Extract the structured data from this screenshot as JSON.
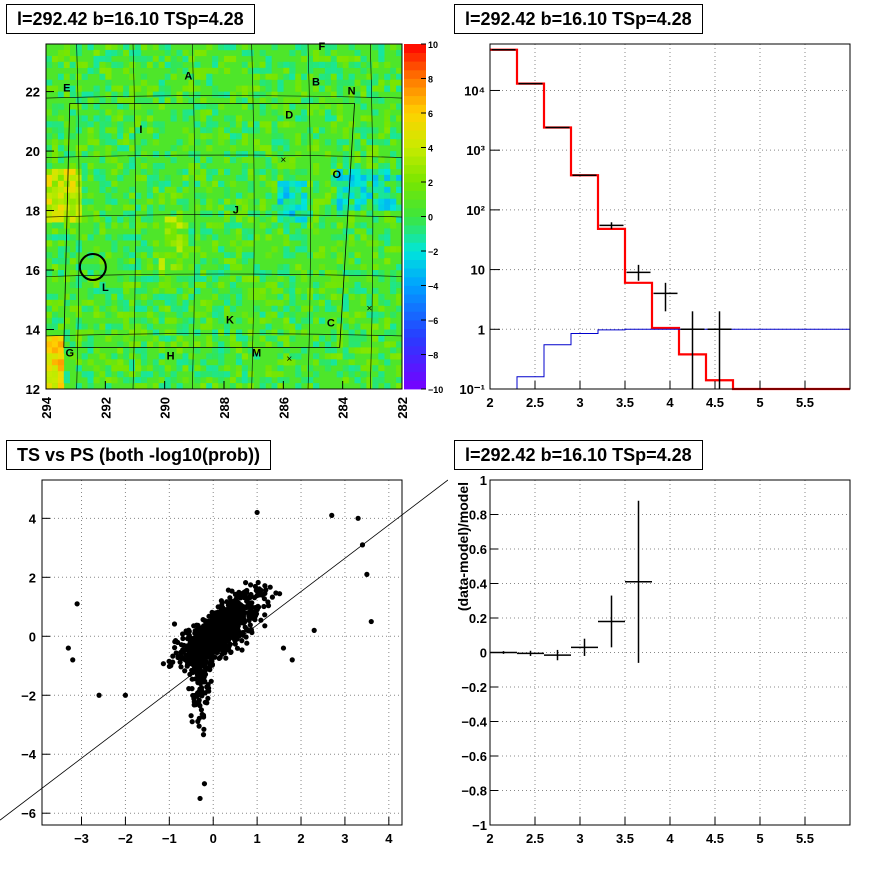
{
  "titles": {
    "map": "l=292.42 b=16.10 TSp=4.28",
    "spectrum": "l=292.42 b=16.10 TSp=4.28",
    "scatter": "TS vs PS (both -log10(prob))",
    "residual": "l=292.42 b=16.10 TSp=4.28"
  },
  "chart_data": [
    {
      "type": "heatmap",
      "title": "l=292.42 b=16.10 TSp=4.28",
      "xlim": [
        294,
        282
      ],
      "ylim": [
        12,
        23.6
      ],
      "x_ticks": [
        "294",
        "292",
        "290",
        "288",
        "286",
        "284",
        "282"
      ],
      "y_ticks": [
        "12",
        "14",
        "16",
        "18",
        "20",
        "22"
      ],
      "colorbar": {
        "range": [
          -10,
          10
        ],
        "ticks": [
          "10",
          "8",
          "6",
          "4",
          "2",
          "0",
          "−2",
          "−4",
          "−6",
          "−8",
          "−10"
        ]
      },
      "region_labels": [
        {
          "text": "A",
          "l": 289.2,
          "b": 22.4
        },
        {
          "text": "B",
          "l": 284.9,
          "b": 22.2
        },
        {
          "text": "E",
          "l": 293.3,
          "b": 22.0
        },
        {
          "text": "F",
          "l": 284.7,
          "b": 23.4
        },
        {
          "text": "N",
          "l": 283.7,
          "b": 21.9
        },
        {
          "text": "D",
          "l": 285.8,
          "b": 21.1
        },
        {
          "text": "I",
          "l": 290.8,
          "b": 20.6
        },
        {
          "text": "O",
          "l": 284.2,
          "b": 19.1
        },
        {
          "text": "J",
          "l": 287.6,
          "b": 17.9
        },
        {
          "text": "L",
          "l": 292.0,
          "b": 15.3
        },
        {
          "text": "K",
          "l": 287.8,
          "b": 14.2
        },
        {
          "text": "C",
          "l": 284.4,
          "b": 14.1
        },
        {
          "text": "G",
          "l": 293.2,
          "b": 13.1
        },
        {
          "text": "M",
          "l": 286.9,
          "b": 13.1
        },
        {
          "text": "H",
          "l": 289.8,
          "b": 13.0
        }
      ],
      "source_circle": {
        "l": 292.42,
        "b": 16.1
      }
    },
    {
      "type": "line",
      "title": "l=292.42 b=16.10 TSp=4.28",
      "y_scale": "log",
      "xlim": [
        2,
        6
      ],
      "ylim": [
        0.1,
        60000
      ],
      "x_ticks": [
        "2",
        "2.5",
        "3",
        "3.5",
        "4",
        "4.5",
        "5",
        "5.5"
      ],
      "y_ticks": [
        "10⁻¹",
        "1",
        "10",
        "10²",
        "10³",
        "10⁴"
      ],
      "bin_edges": [
        2,
        2.3,
        2.6,
        2.9,
        3.2,
        3.5,
        3.8,
        4.1,
        4.4,
        4.7,
        5.0,
        5.3,
        5.6,
        5.9,
        6.0
      ],
      "series": [
        {
          "color": "#ff0000",
          "values": [
            48000,
            13000,
            2400,
            380,
            48,
            6,
            1.05,
            0.38,
            0.14,
            0.1,
            0.1,
            0.1,
            0.1,
            0.1
          ]
        },
        {
          "color": "#0000cc",
          "values": [
            0.1,
            0.16,
            0.55,
            0.85,
            0.98,
            1.0,
            1.0,
            1.0,
            1.0,
            1.0,
            1.0,
            1.0,
            1.0,
            1.0
          ]
        }
      ],
      "data_points": [
        {
          "x": 2.15,
          "y": 48000
        },
        {
          "x": 2.45,
          "y": 13000
        },
        {
          "x": 2.75,
          "y": 2400
        },
        {
          "x": 3.05,
          "y": 380
        },
        {
          "x": 3.35,
          "y": 55,
          "ylo": 48,
          "yhi": 62
        },
        {
          "x": 3.65,
          "y": 9,
          "ylo": 6.5,
          "yhi": 12
        },
        {
          "x": 3.95,
          "y": 4,
          "ylo": 2,
          "yhi": 6
        },
        {
          "x": 4.25,
          "y": 1,
          "ylo": 0.1,
          "yhi": 2
        },
        {
          "x": 4.55,
          "y": 1,
          "ylo": 0.1,
          "yhi": 2
        }
      ]
    },
    {
      "type": "scatter",
      "title": "TS vs PS (both -log10(prob))",
      "xlim": [
        -3.9,
        4.3
      ],
      "ylim": [
        -6.4,
        5.3
      ],
      "x_ticks": [
        "−3",
        "−2",
        "−1",
        "0",
        "1",
        "2",
        "3",
        "4"
      ],
      "y_ticks": [
        "−6",
        "−4",
        "−2",
        "0",
        "2",
        "4"
      ],
      "diagonal_line": true,
      "points_sample": [
        [
          -3.1,
          1.1
        ],
        [
          -3.3,
          -0.4
        ],
        [
          -3.2,
          -0.8
        ],
        [
          -2.6,
          -2.0
        ],
        [
          -2.0,
          -2.0
        ],
        [
          1.0,
          4.2
        ],
        [
          2.7,
          4.1
        ],
        [
          3.3,
          4.0
        ],
        [
          3.4,
          3.1
        ],
        [
          3.6,
          0.5
        ],
        [
          3.5,
          2.1
        ],
        [
          -0.3,
          -5.5
        ],
        [
          -0.2,
          -5.0
        ],
        [
          1.6,
          -0.4
        ],
        [
          1.8,
          -0.8
        ],
        [
          2.3,
          0.2
        ]
      ]
    },
    {
      "type": "line",
      "title": "l=292.42 b=16.10 TSp=4.28",
      "ylabel": "(data-model)/model",
      "xlim": [
        2,
        6
      ],
      "ylim": [
        -1,
        1
      ],
      "x_ticks": [
        "2",
        "2.5",
        "3",
        "3.5",
        "4",
        "4.5",
        "5",
        "5.5"
      ],
      "y_ticks": [
        "−1",
        "−0.8",
        "−0.6",
        "−0.4",
        "−0.2",
        "0",
        "0.2",
        "0.4",
        "0.6",
        "0.8",
        "1"
      ],
      "points": [
        {
          "x": 2.15,
          "y": 0.0,
          "err": 0.008,
          "xerr": 0.15
        },
        {
          "x": 2.45,
          "y": -0.005,
          "err": 0.015,
          "xerr": 0.15
        },
        {
          "x": 2.75,
          "y": -0.015,
          "err": 0.03,
          "xerr": 0.15
        },
        {
          "x": 3.05,
          "y": 0.03,
          "err": 0.05,
          "xerr": 0.15
        },
        {
          "x": 3.35,
          "y": 0.18,
          "err": 0.15,
          "xerr": 0.15
        },
        {
          "x": 3.65,
          "y": 0.41,
          "err": 0.47,
          "xerr": 0.15
        }
      ]
    }
  ]
}
